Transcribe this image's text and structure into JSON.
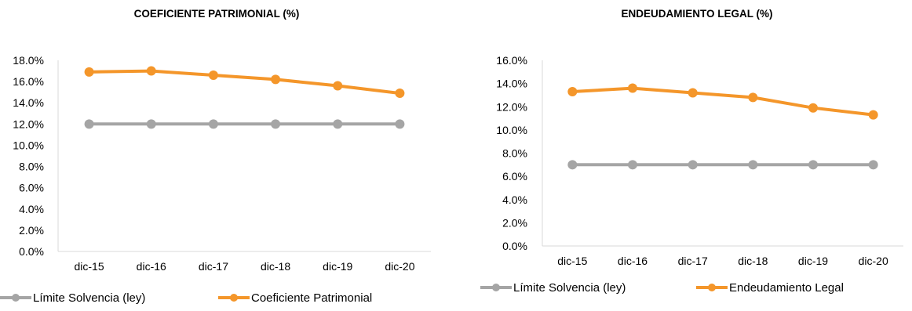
{
  "charts": [
    {
      "title": "COEFICIENTE PATRIMONIAL (%)",
      "yticks": [
        "0.0%",
        "2.0%",
        "4.0%",
        "6.0%",
        "8.0%",
        "10.0%",
        "12.0%",
        "14.0%",
        "16.0%",
        "18.0%"
      ],
      "xticks": [
        "dic-15",
        "dic-16",
        "dic-17",
        "dic-18",
        "dic-19",
        "dic-20"
      ],
      "legend": [
        "Límite Solvencia (ley)",
        "Coeficiente Patrimonial"
      ]
    },
    {
      "title": "ENDEUDAMIENTO LEGAL (%)",
      "yticks": [
        "0.0%",
        "2.0%",
        "4.0%",
        "6.0%",
        "8.0%",
        "10.0%",
        "12.0%",
        "14.0%",
        "16.0%"
      ],
      "xticks": [
        "dic-15",
        "dic-16",
        "dic-17",
        "dic-18",
        "dic-19",
        "dic-20"
      ],
      "legend": [
        "Límite Solvencia (ley)",
        "Endeudamiento Legal"
      ]
    }
  ],
  "chart_data": [
    {
      "type": "line",
      "title": "COEFICIENTE PATRIMONIAL (%)",
      "categories": [
        "dic-15",
        "dic-16",
        "dic-17",
        "dic-18",
        "dic-19",
        "dic-20"
      ],
      "ylim": [
        0,
        18
      ],
      "grid": false,
      "legend_position": "bottom",
      "series": [
        {
          "name": "Límite Solvencia (ley)",
          "values": [
            12.0,
            12.0,
            12.0,
            12.0,
            12.0,
            12.0
          ],
          "color": "#a5a5a5"
        },
        {
          "name": "Coeficiente Patrimonial",
          "values": [
            16.9,
            17.0,
            16.6,
            16.2,
            15.6,
            14.9
          ],
          "color": "#f4962a"
        }
      ]
    },
    {
      "type": "line",
      "title": "ENDEUDAMIENTO LEGAL (%)",
      "categories": [
        "dic-15",
        "dic-16",
        "dic-17",
        "dic-18",
        "dic-19",
        "dic-20"
      ],
      "ylim": [
        0,
        16
      ],
      "grid": false,
      "legend_position": "bottom",
      "series": [
        {
          "name": "Límite Solvencia (ley)",
          "values": [
            7.0,
            7.0,
            7.0,
            7.0,
            7.0,
            7.0
          ],
          "color": "#a5a5a5"
        },
        {
          "name": "Endeudamiento Legal",
          "values": [
            13.3,
            13.6,
            13.2,
            12.8,
            11.9,
            11.3
          ],
          "color": "#f4962a"
        }
      ]
    }
  ]
}
